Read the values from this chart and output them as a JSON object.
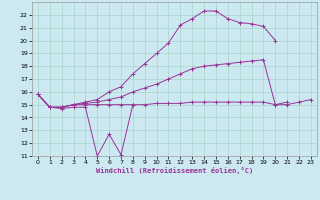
{
  "background_color": "#cce8f0",
  "grid_color": "#aad4cc",
  "line_color": "#993399",
  "xlabel": "Windchill (Refroidissement éolien,°C)",
  "xlim": [
    -0.5,
    23.5
  ],
  "ylim": [
    11,
    23
  ],
  "xticks": [
    0,
    1,
    2,
    3,
    4,
    5,
    6,
    7,
    8,
    9,
    10,
    11,
    12,
    13,
    14,
    15,
    16,
    17,
    18,
    19,
    20,
    21,
    22,
    23
  ],
  "yticks": [
    11,
    12,
    13,
    14,
    15,
    16,
    17,
    18,
    19,
    20,
    21,
    22
  ],
  "series": [
    {
      "x": [
        0,
        1,
        2,
        3,
        4,
        5,
        6,
        7,
        8
      ],
      "y": [
        15.8,
        14.8,
        14.7,
        14.8,
        14.8,
        11.0,
        12.7,
        11.1,
        15.0
      ]
    },
    {
      "x": [
        0,
        1,
        2,
        3,
        4,
        5,
        6,
        7,
        8,
        9,
        10,
        11,
        12,
        13,
        14,
        15,
        16,
        17,
        18,
        19,
        20,
        21,
        22,
        23
      ],
      "y": [
        15.8,
        14.8,
        14.8,
        15.0,
        15.0,
        15.0,
        15.0,
        15.0,
        15.0,
        15.0,
        15.1,
        15.1,
        15.1,
        15.2,
        15.2,
        15.2,
        15.2,
        15.2,
        15.2,
        15.2,
        15.0,
        15.0,
        15.2,
        15.4
      ]
    },
    {
      "x": [
        0,
        1,
        2,
        3,
        4,
        5,
        6,
        7,
        8,
        9,
        10,
        11,
        12,
        13,
        14,
        15,
        16,
        17,
        18,
        19,
        20,
        21,
        22,
        23
      ],
      "y": [
        15.8,
        14.8,
        14.8,
        15.0,
        15.1,
        15.2,
        15.4,
        15.6,
        16.0,
        16.3,
        16.6,
        17.0,
        17.4,
        17.8,
        18.0,
        18.1,
        18.2,
        18.3,
        18.4,
        18.5,
        15.0,
        15.2,
        null,
        null
      ]
    },
    {
      "x": [
        0,
        1,
        2,
        3,
        4,
        5,
        6,
        7,
        8,
        9,
        10,
        11,
        12,
        13,
        14,
        15,
        16,
        17,
        18,
        19,
        20,
        21,
        22,
        23
      ],
      "y": [
        15.8,
        14.8,
        14.8,
        15.0,
        15.2,
        15.4,
        16.0,
        16.4,
        17.4,
        18.2,
        19.0,
        19.8,
        21.2,
        21.7,
        22.3,
        22.3,
        21.7,
        21.4,
        21.3,
        21.1,
        20.0,
        null,
        null,
        null
      ]
    }
  ]
}
